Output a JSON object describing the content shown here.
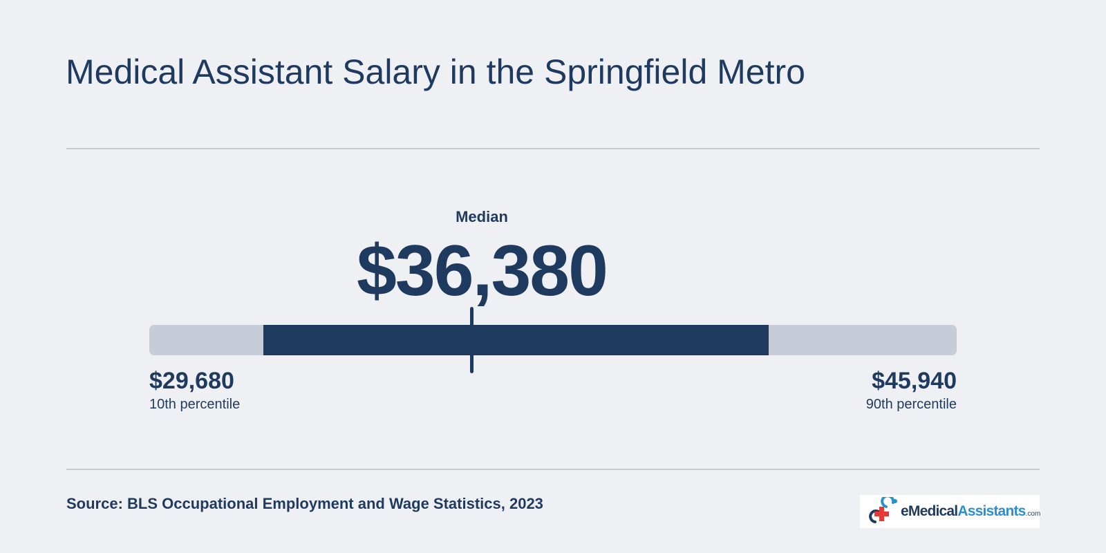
{
  "title": "Medical Assistant Salary in the Springfield Metro",
  "source": "Source: BLS Occupational Employment and Wage Statistics, 2023",
  "logo": {
    "prefix": "e",
    "name_a": "Medical",
    "name_b": "Assistants",
    "suffix": ".com"
  },
  "colors": {
    "background": "#eff0f4",
    "text": "#1e3a5f",
    "range": "#1f3a5f",
    "track": "#c7cdd8",
    "accent": "#2c8fd0",
    "logo_cross": "#e53935"
  },
  "chart_data": {
    "type": "range",
    "median": {
      "label": "Median",
      "value": 36380,
      "display": "$36,380"
    },
    "p10": {
      "label": "10th percentile",
      "value": 29680,
      "display": "$29,680"
    },
    "p90": {
      "label": "90th percentile",
      "value": 45940,
      "display": "$45,940"
    },
    "xlim": [
      26000,
      52000
    ]
  }
}
